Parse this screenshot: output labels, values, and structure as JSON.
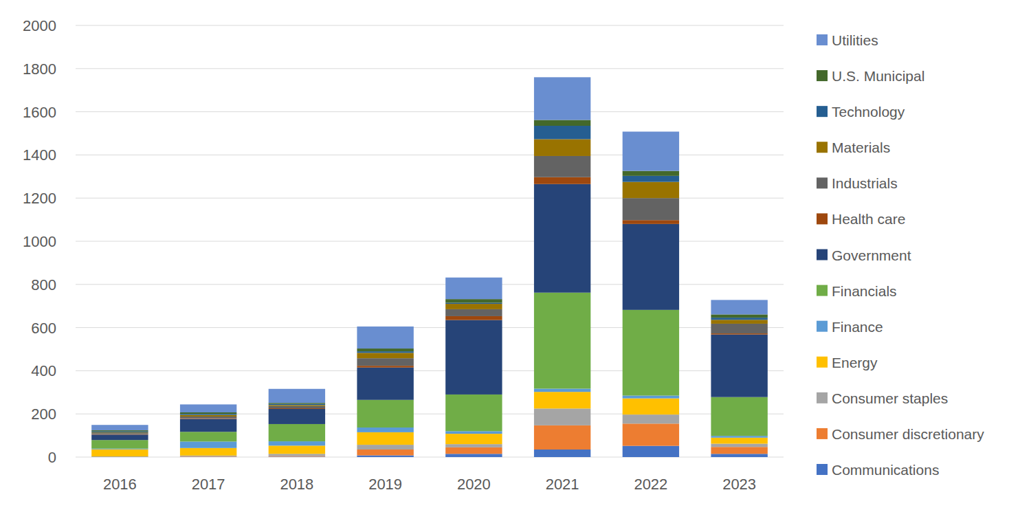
{
  "chart_data": {
    "type": "bar",
    "stacked": true,
    "grid": true,
    "legend": "right",
    "categories": [
      "2016",
      "2017",
      "2018",
      "2019",
      "2020",
      "2021",
      "2022",
      "2023"
    ],
    "ylim": [
      0,
      2000
    ],
    "yticks": [
      0,
      200,
      400,
      600,
      800,
      1000,
      1200,
      1400,
      1600,
      1800,
      2000
    ],
    "series": [
      {
        "name": "Communications",
        "color": "#4472c4",
        "values": [
          0,
          0,
          2,
          8,
          15,
          35,
          52,
          15
        ]
      },
      {
        "name": "Consumer discretionary",
        "color": "#ed7d31",
        "values": [
          0,
          2,
          3,
          27,
          30,
          112,
          103,
          32
        ]
      },
      {
        "name": "Consumer staples",
        "color": "#a5a5a5",
        "values": [
          3,
          5,
          10,
          22,
          15,
          78,
          42,
          15
        ]
      },
      {
        "name": "Energy",
        "color": "#ffc000",
        "values": [
          33,
          35,
          38,
          58,
          48,
          77,
          75,
          28
        ]
      },
      {
        "name": "Finance",
        "color": "#5b9bd5",
        "values": [
          3,
          30,
          20,
          22,
          12,
          15,
          13,
          8
        ]
      },
      {
        "name": "Financials",
        "color": "#70ad47",
        "values": [
          40,
          45,
          80,
          128,
          170,
          445,
          397,
          180
        ]
      },
      {
        "name": "Government",
        "color": "#264478",
        "values": [
          25,
          60,
          70,
          150,
          345,
          503,
          398,
          290
        ]
      },
      {
        "name": "Health care",
        "color": "#9e480e",
        "values": [
          2,
          3,
          3,
          8,
          18,
          32,
          18,
          5
        ]
      },
      {
        "name": "Industrials",
        "color": "#636363",
        "values": [
          5,
          8,
          10,
          35,
          32,
          98,
          102,
          45
        ]
      },
      {
        "name": "Materials",
        "color": "#997300",
        "values": [
          3,
          7,
          5,
          25,
          25,
          78,
          75,
          18
        ]
      },
      {
        "name": "Technology",
        "color": "#255e91",
        "values": [
          5,
          5,
          5,
          7,
          5,
          62,
          28,
          10
        ]
      },
      {
        "name": "U.S. Municipal",
        "color": "#43682b",
        "values": [
          5,
          7,
          5,
          13,
          17,
          27,
          23,
          15
        ]
      },
      {
        "name": "Utilities",
        "color": "#698ed0",
        "values": [
          25,
          37,
          65,
          102,
          100,
          198,
          182,
          67
        ]
      }
    ]
  }
}
